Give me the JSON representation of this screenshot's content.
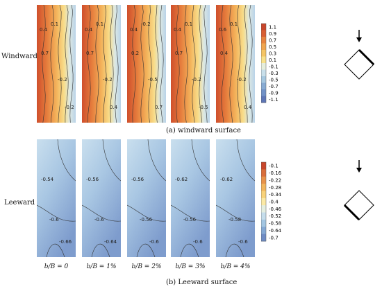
{
  "figure": {
    "row_labels": {
      "windward": "Windward",
      "leeward": "Leeward"
    },
    "captions": {
      "windward": "(a) windward surface",
      "leeward": "(b) Leeward surface"
    },
    "panel_labels": [
      "b/B = 0",
      "b/B = 1%",
      "b/B = 2%",
      "b/B = 3%",
      "b/B = 4%"
    ],
    "windward_contour_labels": [
      [
        "0.4",
        "0.7",
        "0.1",
        "-0.2",
        "-0.2"
      ],
      [
        "0.4",
        "0.7",
        "0.1",
        "-0.2",
        "0.4"
      ],
      [
        "0.4",
        "0.2",
        "-0.2",
        "-0.5",
        "0.7"
      ],
      [
        "0.4",
        "0.7",
        "0.1",
        "-0.2",
        "-0.5"
      ],
      [
        "0.6",
        "0.4",
        "0.1",
        "-0.2",
        "0.4"
      ]
    ],
    "leeward_contour_labels": [
      [
        "-0.54",
        "-0.6",
        "-0.66"
      ],
      [
        "-0.56",
        "-0.6",
        "-0.64"
      ],
      [
        "-0.56",
        "-0.56",
        "-0.6"
      ],
      [
        "-0.62",
        "-0.56",
        "-0.6"
      ],
      [
        "-0.62",
        "-0.58",
        "-0.6"
      ]
    ],
    "windward_colorbar": {
      "ticks": [
        "1.1",
        "0.9",
        "0.7",
        "0.5",
        "0.3",
        "0.1",
        "-0.1",
        "-0.3",
        "-0.5",
        "-0.7",
        "-0.9",
        "-1.1"
      ],
      "colors": [
        "#c8462b",
        "#d95f33",
        "#e8843f",
        "#f0a54f",
        "#f5c565",
        "#f9e18a",
        "#e6eedc",
        "#c8dfea",
        "#a6c8e0",
        "#88abd3",
        "#7191c6",
        "#5e76b6"
      ]
    },
    "leeward_colorbar": {
      "ticks": [
        "-0.1",
        "-0.16",
        "-0.22",
        "-0.28",
        "-0.34",
        "-0.4",
        "-0.46",
        "-0.52",
        "-0.58",
        "-0.64",
        "-0.7"
      ],
      "colors": [
        "#c8462b",
        "#d96e3a",
        "#e8934a",
        "#f2b55d",
        "#f8d27a",
        "#fbe9a5",
        "#e4eee0",
        "#c5ddeb",
        "#a3c6e2",
        "#85a9d4",
        "#6f8cc4"
      ]
    }
  }
}
